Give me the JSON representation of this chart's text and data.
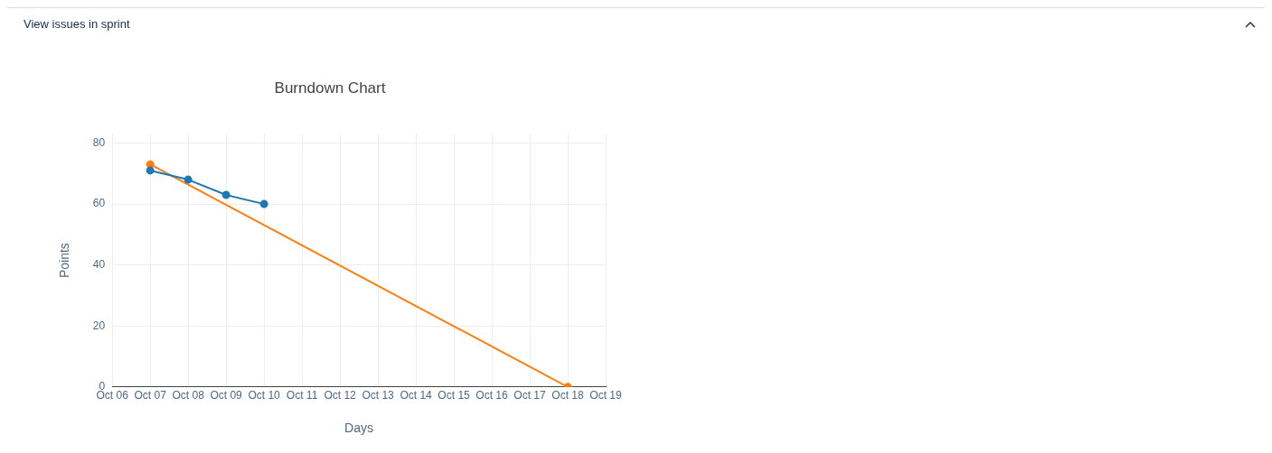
{
  "chart_data": {
    "type": "line",
    "title": "Burndown Chart",
    "xlabel": "Days",
    "ylabel": "Points",
    "annotations": [
      "View issues in sprint"
    ],
    "series": [
      {
        "color": "#1f77b4",
        "x": [
          "--10-07",
          "--10-08",
          "--10-09",
          "--10-10"
        ],
        "values": [
          71,
          68,
          63,
          60
        ]
      },
      {
        "color": "#ff7f0e",
        "x": [
          "--10-07",
          "--10-18"
        ],
        "values": [
          73,
          0
        ]
      }
    ],
    "xlim": [
      "--10-06",
      "--10-19"
    ],
    "xticks": [
      {
        "value": "--10-06",
        "label": "Oct 06"
      },
      {
        "value": "--10-07",
        "label": "Oct 07"
      },
      {
        "value": "--10-08",
        "label": "Oct 08"
      },
      {
        "value": "--10-09",
        "label": "Oct 09"
      },
      {
        "value": "--10-10",
        "label": "Oct 10"
      },
      {
        "value": "--10-11",
        "label": "Oct 11"
      },
      {
        "value": "--10-12",
        "label": "Oct 12"
      },
      {
        "value": "--10-13",
        "label": "Oct 13"
      },
      {
        "value": "--10-14",
        "label": "Oct 14"
      },
      {
        "value": "--10-15",
        "label": "Oct 15"
      },
      {
        "value": "--10-16",
        "label": "Oct 16"
      },
      {
        "value": "--10-17",
        "label": "Oct 17"
      },
      {
        "value": "--10-18",
        "label": "Oct 18"
      },
      {
        "value": "--10-19",
        "label": "Oct 19"
      }
    ],
    "ylim": [
      0,
      83
    ],
    "yticks": [
      0,
      20,
      40,
      60,
      80
    ],
    "grid": true,
    "legend": false,
    "marker": "circle",
    "line_style": "solid"
  }
}
